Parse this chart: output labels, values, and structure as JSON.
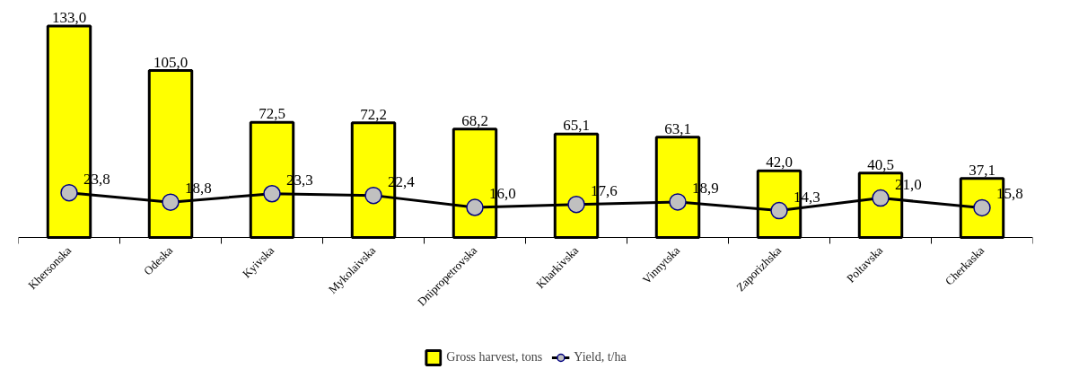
{
  "chart_data": {
    "type": "bar",
    "categories": [
      "Khersonska",
      "Odeska",
      "Kyivska",
      "Mykolaivska",
      "Dnipropetrovska",
      "Kharkivska",
      "Vinnytska",
      "Zaporizhska",
      "Poltavska",
      "Cherkaska"
    ],
    "series": [
      {
        "name": "Gross harvest, tons",
        "color": "#ffff00",
        "values": [
          133.0,
          105.0,
          72.5,
          72.2,
          68.2,
          65.1,
          63.1,
          42.0,
          40.5,
          37.1
        ],
        "value_labels": [
          "133,0",
          "105,0",
          "72,5",
          "72,2",
          "68,2",
          "65,1",
          "63,1",
          "42,0",
          "40,5",
          "37,1"
        ]
      },
      {
        "name": "Yield, t/ha",
        "type": "line",
        "axis": "y2",
        "color": "#000000",
        "marker": "circle",
        "values": [
          23.8,
          18.8,
          23.3,
          22.4,
          16.0,
          17.6,
          18.9,
          14.3,
          21.0,
          15.8
        ],
        "value_labels": [
          "23,8",
          "18,8",
          "23,3",
          "22,4",
          "16,0",
          "17,6",
          "18,9",
          "14,3",
          "21,0",
          "15,8"
        ]
      }
    ],
    "tick_labels": "x",
    "grid": false,
    "legend": "bottom",
    "line_style": "solid"
  }
}
